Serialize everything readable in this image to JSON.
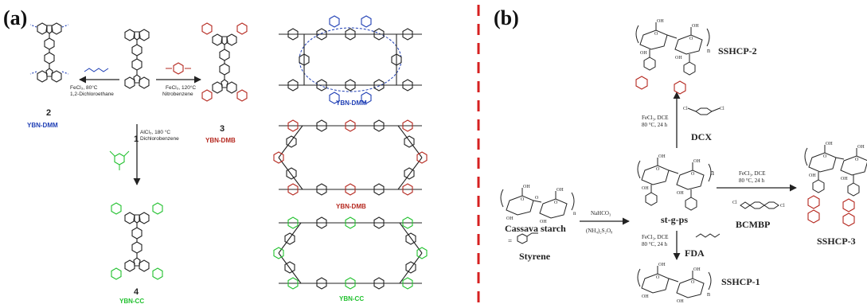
{
  "panel_a": {
    "label": "(a)",
    "numbers": {
      "n1": "1",
      "n2": "2",
      "n3": "3",
      "n4": "4"
    },
    "reactions": {
      "left_line1": "FeCl₃, 80°C",
      "left_line2": "1,2-Dichloroethane",
      "right_line1": "FeCl₃, 120°C",
      "right_line2": "Nitrobenzene",
      "down_line1": "AlCl₃, 180 °C",
      "down_line2": "Dichlorobenzene"
    },
    "products": {
      "left": "YBN-DMM",
      "right": "YBN-DMB",
      "bottom": "YBN-CC"
    },
    "networks": [
      {
        "name": "YBN-DMM",
        "color": "#1f3fb5"
      },
      {
        "name": "YBN-DMB",
        "color": "#b5281f"
      },
      {
        "name": "YBN-CC",
        "color": "#22c12f"
      }
    ]
  },
  "panel_b": {
    "label": "(b)",
    "starch": "Cassava starch",
    "styrene": "Styrene",
    "center": "st-g-ps",
    "r1_line1": "NaHCO₃",
    "r1_line2": "(NH₄)₂S₂O₈",
    "up_line1": "FeCl₃, DCE",
    "up_line2": "80 °C, 24 h",
    "up_reagent": "DCX",
    "right_line1": "FeCl₃, DCE",
    "right_line2": "80 °C, 24 h",
    "right_reagent": "BCMBP",
    "down_line1": "FeCl₃, DCE",
    "down_line2": "80 °C, 24 h",
    "down_reagent": "FDA",
    "p_top": "SSHCP-2",
    "p_right": "SSHCP-3",
    "p_bottom": "SSHCP-1",
    "n_sub": "n"
  },
  "colors": {
    "divider": "#d62020",
    "blue": "#1f3fb5",
    "red": "#b5281f",
    "green": "#22c12f",
    "ink": "#222222"
  }
}
